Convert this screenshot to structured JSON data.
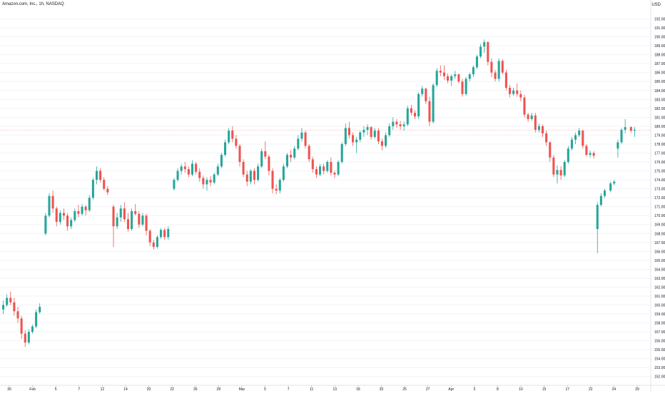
{
  "header": {
    "symbol_line": "Amazon.com, Inc., 1h, NASDAQ",
    "currency": "USD"
  },
  "colors": {
    "up": "#26a69a",
    "down": "#ef5350",
    "grid": "#f0f3fa",
    "axis_text": "#131722",
    "crosshair": "#f7a8a8"
  },
  "chart_data": {
    "type": "candlestick",
    "title": "Amazon.com, Inc., 1h, NASDAQ",
    "ylabel": "USD",
    "ylim": [
      151.5,
      193.0
    ],
    "y_ticks": [
      "152.00",
      "153.00",
      "154.00",
      "155.00",
      "156.00",
      "157.00",
      "158.00",
      "159.00",
      "160.00",
      "161.00",
      "162.00",
      "163.00",
      "164.00",
      "165.00",
      "166.00",
      "167.00",
      "168.00",
      "169.00",
      "170.00",
      "171.00",
      "172.00",
      "173.00",
      "174.00",
      "175.00",
      "176.00",
      "177.00",
      "178.00",
      "179.00",
      "180.00",
      "181.00",
      "182.00",
      "183.00",
      "184.00",
      "185.00",
      "186.00",
      "187.00",
      "188.00",
      "189.00",
      "190.00",
      "191.00",
      "192.00"
    ],
    "x_ticks": [
      "30",
      "Feb",
      "5",
      "7",
      "12",
      "14",
      "20",
      "22",
      "26",
      "28",
      "Mar",
      "5",
      "7",
      "11",
      "13",
      "18",
      "20",
      "25",
      "27",
      "Apr",
      "3",
      "8",
      "10",
      "15",
      "17",
      "22",
      "24",
      "29"
    ],
    "grid": true,
    "crosshair_price": 179.55,
    "candles": [
      [
        159.5,
        160.5,
        159.0,
        160.0
      ],
      [
        160.0,
        161.2,
        159.8,
        160.8
      ],
      [
        160.8,
        161.5,
        160.0,
        160.3
      ],
      [
        160.3,
        160.8,
        158.8,
        159.3
      ],
      [
        159.3,
        159.8,
        158.0,
        158.5
      ],
      [
        158.5,
        158.8,
        156.2,
        156.8
      ],
      [
        156.8,
        157.2,
        155.3,
        155.8
      ],
      [
        155.8,
        157.3,
        155.6,
        157.0
      ],
      [
        157.0,
        157.8,
        156.8,
        157.6
      ],
      [
        157.6,
        159.5,
        157.4,
        159.2
      ],
      [
        159.2,
        160.2,
        159.0,
        159.8
      ],
      [
        168.0,
        170.3,
        167.8,
        170.0
      ],
      [
        170.0,
        172.5,
        169.8,
        172.2
      ],
      [
        172.2,
        172.8,
        170.3,
        170.8
      ],
      [
        170.8,
        171.0,
        168.8,
        169.3
      ],
      [
        169.3,
        170.6,
        169.0,
        170.3
      ],
      [
        170.3,
        170.8,
        169.5,
        170.0
      ],
      [
        170.0,
        170.3,
        168.3,
        168.8
      ],
      [
        168.8,
        169.8,
        168.5,
        169.5
      ],
      [
        169.5,
        170.8,
        169.3,
        170.5
      ],
      [
        170.5,
        171.2,
        169.8,
        170.2
      ],
      [
        170.2,
        171.3,
        170.0,
        171.0
      ],
      [
        171.0,
        171.2,
        170.0,
        170.6
      ],
      [
        170.6,
        172.3,
        170.4,
        172.0
      ],
      [
        172.0,
        174.2,
        171.8,
        174.0
      ],
      [
        174.0,
        175.5,
        173.5,
        175.0
      ],
      [
        175.0,
        175.3,
        173.7,
        174.0
      ],
      [
        174.0,
        174.3,
        172.8,
        173.0
      ],
      [
        173.0,
        173.3,
        172.3,
        172.6
      ],
      [
        171.0,
        171.2,
        166.5,
        168.8
      ],
      [
        168.8,
        170.3,
        168.5,
        169.8
      ],
      [
        169.8,
        171.2,
        169.3,
        170.8
      ],
      [
        170.8,
        171.5,
        169.3,
        169.6
      ],
      [
        169.6,
        170.3,
        168.2,
        168.5
      ],
      [
        168.5,
        170.8,
        168.3,
        170.5
      ],
      [
        170.5,
        171.3,
        170.0,
        170.2
      ],
      [
        170.2,
        170.5,
        168.6,
        169.0
      ],
      [
        169.0,
        170.3,
        168.8,
        170.0
      ],
      [
        170.0,
        170.2,
        167.8,
        168.3
      ],
      [
        168.3,
        168.5,
        166.6,
        167.0
      ],
      [
        167.0,
        167.3,
        166.2,
        166.5
      ],
      [
        166.5,
        167.8,
        166.3,
        167.6
      ],
      [
        167.6,
        168.6,
        167.4,
        168.4
      ],
      [
        168.4,
        168.6,
        167.3,
        167.6
      ],
      [
        167.6,
        168.8,
        167.3,
        168.5
      ],
      [
        173.0,
        174.2,
        172.8,
        174.0
      ],
      [
        174.0,
        175.3,
        173.8,
        175.0
      ],
      [
        175.0,
        175.8,
        174.6,
        175.5
      ],
      [
        175.5,
        176.0,
        174.8,
        175.2
      ],
      [
        175.2,
        175.5,
        174.3,
        174.6
      ],
      [
        174.6,
        176.2,
        174.4,
        175.8
      ],
      [
        175.8,
        176.0,
        174.6,
        174.9
      ],
      [
        174.9,
        175.3,
        173.8,
        174.2
      ],
      [
        174.2,
        174.5,
        173.0,
        173.5
      ],
      [
        173.5,
        174.3,
        172.8,
        174.0
      ],
      [
        174.0,
        174.4,
        173.3,
        173.7
      ],
      [
        173.7,
        174.8,
        173.5,
        174.6
      ],
      [
        174.6,
        175.8,
        174.4,
        175.5
      ],
      [
        175.5,
        177.0,
        175.3,
        176.8
      ],
      [
        176.8,
        178.5,
        176.6,
        178.2
      ],
      [
        178.2,
        179.8,
        178.0,
        179.5
      ],
      [
        179.5,
        180.0,
        178.2,
        178.6
      ],
      [
        178.6,
        179.0,
        177.5,
        177.8
      ],
      [
        177.8,
        178.0,
        175.5,
        176.0
      ],
      [
        176.0,
        176.3,
        174.3,
        174.6
      ],
      [
        174.6,
        175.0,
        173.3,
        173.8
      ],
      [
        173.8,
        175.2,
        173.5,
        175.0
      ],
      [
        175.0,
        175.3,
        173.5,
        174.0
      ],
      [
        174.0,
        175.8,
        173.8,
        175.5
      ],
      [
        175.5,
        177.5,
        175.3,
        177.2
      ],
      [
        177.2,
        178.3,
        176.3,
        176.6
      ],
      [
        176.6,
        176.8,
        174.5,
        175.0
      ],
      [
        175.0,
        175.3,
        172.5,
        173.0
      ],
      [
        173.0,
        173.5,
        172.4,
        172.8
      ],
      [
        172.8,
        174.2,
        172.5,
        174.0
      ],
      [
        174.0,
        175.8,
        173.8,
        175.5
      ],
      [
        175.5,
        177.0,
        175.3,
        176.8
      ],
      [
        176.8,
        177.3,
        176.0,
        176.5
      ],
      [
        176.5,
        177.8,
        176.3,
        177.5
      ],
      [
        177.5,
        179.0,
        177.3,
        178.6
      ],
      [
        178.6,
        179.8,
        178.3,
        179.3
      ],
      [
        179.3,
        179.5,
        177.5,
        177.8
      ],
      [
        177.8,
        178.0,
        176.0,
        176.3
      ],
      [
        176.3,
        176.6,
        174.8,
        175.2
      ],
      [
        175.2,
        175.5,
        174.2,
        174.6
      ],
      [
        174.6,
        175.8,
        174.4,
        175.5
      ],
      [
        175.5,
        175.8,
        174.6,
        175.0
      ],
      [
        175.0,
        176.2,
        174.8,
        176.0
      ],
      [
        176.0,
        176.5,
        174.5,
        174.8
      ],
      [
        174.8,
        175.0,
        174.2,
        174.6
      ],
      [
        174.6,
        176.2,
        174.4,
        176.0
      ],
      [
        176.0,
        178.2,
        175.8,
        178.0
      ],
      [
        178.0,
        180.3,
        177.8,
        179.8
      ],
      [
        179.8,
        180.5,
        178.6,
        179.0
      ],
      [
        179.0,
        179.3,
        177.8,
        178.2
      ],
      [
        178.2,
        178.8,
        177.0,
        178.5
      ],
      [
        178.5,
        179.5,
        178.2,
        179.3
      ],
      [
        179.3,
        180.0,
        178.8,
        179.6
      ],
      [
        179.6,
        180.2,
        179.0,
        179.9
      ],
      [
        179.9,
        180.0,
        178.5,
        178.8
      ],
      [
        178.8,
        179.8,
        178.6,
        179.5
      ],
      [
        179.5,
        179.8,
        178.0,
        178.3
      ],
      [
        178.3,
        178.6,
        177.3,
        177.8
      ],
      [
        177.8,
        179.3,
        177.6,
        179.0
      ],
      [
        179.0,
        180.3,
        178.8,
        180.0
      ],
      [
        180.0,
        181.0,
        179.6,
        180.5
      ],
      [
        180.5,
        180.8,
        179.8,
        180.2
      ],
      [
        180.2,
        180.6,
        179.6,
        180.0
      ],
      [
        180.0,
        180.5,
        179.5,
        180.2
      ],
      [
        180.2,
        182.3,
        180.0,
        182.0
      ],
      [
        182.0,
        182.4,
        181.2,
        181.5
      ],
      [
        181.5,
        181.8,
        180.8,
        181.1
      ],
      [
        181.1,
        183.8,
        180.8,
        183.6
      ],
      [
        183.6,
        184.5,
        183.3,
        184.2
      ],
      [
        184.2,
        184.3,
        182.5,
        182.8
      ],
      [
        182.8,
        183.3,
        180.0,
        180.5
      ],
      [
        180.5,
        184.8,
        180.3,
        184.6
      ],
      [
        184.6,
        186.5,
        184.4,
        186.2
      ],
      [
        186.2,
        186.8,
        185.6,
        186.0
      ],
      [
        186.0,
        186.8,
        185.2,
        185.6
      ],
      [
        185.6,
        185.9,
        184.8,
        185.1
      ],
      [
        185.1,
        185.8,
        184.5,
        185.6
      ],
      [
        185.6,
        186.2,
        185.3,
        185.8
      ],
      [
        185.8,
        185.9,
        184.8,
        185.0
      ],
      [
        185.0,
        185.3,
        183.3,
        183.6
      ],
      [
        183.6,
        185.5,
        183.4,
        185.3
      ],
      [
        185.3,
        186.0,
        185.0,
        185.8
      ],
      [
        185.8,
        186.8,
        185.5,
        186.6
      ],
      [
        186.6,
        188.0,
        186.4,
        187.8
      ],
      [
        187.8,
        189.2,
        187.6,
        188.9
      ],
      [
        188.9,
        189.7,
        188.2,
        189.4
      ],
      [
        189.4,
        189.5,
        186.8,
        187.2
      ],
      [
        187.2,
        187.6,
        185.5,
        186.0
      ],
      [
        186.0,
        186.3,
        185.0,
        185.3
      ],
      [
        185.3,
        187.6,
        185.0,
        187.3
      ],
      [
        187.3,
        187.5,
        185.8,
        186.0
      ],
      [
        186.0,
        186.3,
        184.0,
        184.3
      ],
      [
        184.3,
        184.6,
        183.2,
        183.6
      ],
      [
        183.6,
        184.3,
        183.4,
        184.0
      ],
      [
        184.0,
        184.8,
        183.3,
        183.6
      ],
      [
        183.6,
        184.0,
        182.8,
        183.2
      ],
      [
        183.2,
        183.5,
        181.0,
        181.3
      ],
      [
        181.3,
        181.5,
        180.5,
        180.8
      ],
      [
        180.8,
        181.5,
        180.6,
        181.2
      ],
      [
        181.2,
        181.5,
        179.3,
        179.6
      ],
      [
        179.6,
        180.3,
        179.3,
        180.0
      ],
      [
        180.0,
        180.2,
        178.8,
        179.2
      ],
      [
        179.2,
        179.5,
        177.8,
        178.2
      ],
      [
        178.2,
        178.3,
        176.0,
        176.5
      ],
      [
        176.5,
        176.8,
        174.3,
        174.6
      ],
      [
        174.6,
        175.6,
        173.6,
        175.1
      ],
      [
        175.1,
        175.5,
        174.0,
        174.5
      ],
      [
        174.5,
        176.2,
        174.3,
        176.0
      ],
      [
        176.0,
        177.8,
        175.8,
        177.5
      ],
      [
        177.5,
        178.8,
        177.3,
        178.5
      ],
      [
        178.5,
        179.3,
        178.0,
        179.0
      ],
      [
        179.0,
        179.8,
        178.8,
        179.5
      ],
      [
        179.5,
        179.6,
        177.5,
        177.8
      ],
      [
        177.8,
        178.0,
        176.6,
        176.8
      ],
      [
        176.8,
        177.3,
        176.5,
        177.0
      ],
      [
        177.0,
        177.2,
        176.4,
        176.7
      ],
      [
        168.5,
        171.5,
        165.8,
        171.2
      ],
      [
        171.2,
        172.5,
        171.0,
        172.2
      ],
      [
        172.2,
        173.0,
        172.0,
        172.8
      ],
      [
        172.8,
        173.8,
        172.6,
        173.6
      ],
      [
        173.6,
        174.0,
        173.4,
        173.8
      ],
      [
        177.5,
        178.5,
        176.5,
        178.2
      ],
      [
        178.2,
        179.8,
        178.0,
        179.6
      ],
      [
        179.6,
        180.8,
        179.2,
        179.9
      ],
      [
        179.9,
        180.0,
        179.3,
        179.5
      ],
      [
        179.5,
        179.9,
        178.8,
        179.6
      ]
    ],
    "session_breaks": [
      11,
      29,
      45,
      164,
      169
    ]
  }
}
